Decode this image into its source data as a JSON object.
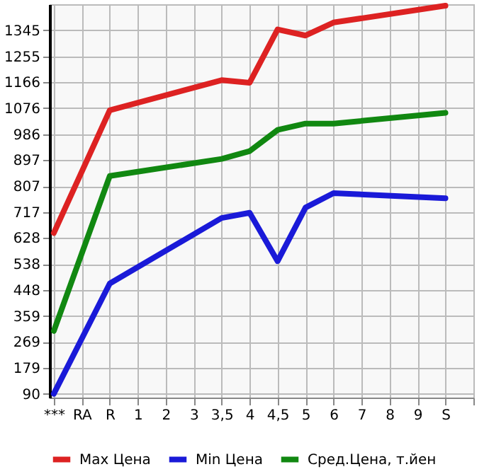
{
  "chart_data": {
    "type": "line",
    "categories": [
      "***",
      "RA",
      "R",
      "1",
      "2",
      "3",
      "3,5",
      "4",
      "4,5",
      "5",
      "6",
      "7",
      "8",
      "9",
      "S"
    ],
    "series": [
      {
        "name": "Max Цена",
        "color": "#dd2222",
        "values": [
          645,
          null,
          1069,
          null,
          null,
          null,
          1173,
          1164,
          1348,
          1327,
          1372,
          null,
          null,
          null,
          1430
        ]
      },
      {
        "name": "Min Цена",
        "color": "#1a1ad8",
        "values": [
          90,
          null,
          471,
          null,
          null,
          null,
          697,
          715,
          548,
          733,
          783,
          null,
          null,
          null,
          765
        ]
      },
      {
        "name": "Сред.Цена, т.йен",
        "color": "#118811",
        "values": [
          307,
          null,
          842,
          null,
          null,
          null,
          901,
          928,
          1001,
          1023,
          1023,
          null,
          null,
          null,
          1060
        ]
      }
    ],
    "ylim": [
      77,
      1435
    ],
    "yticks": [
      90,
      179,
      269,
      359,
      448,
      538,
      628,
      717,
      807,
      897,
      986,
      1076,
      1166,
      1255,
      1345
    ],
    "grid": true,
    "legend": "bottom",
    "marker": "none",
    "line_style": "solid"
  }
}
